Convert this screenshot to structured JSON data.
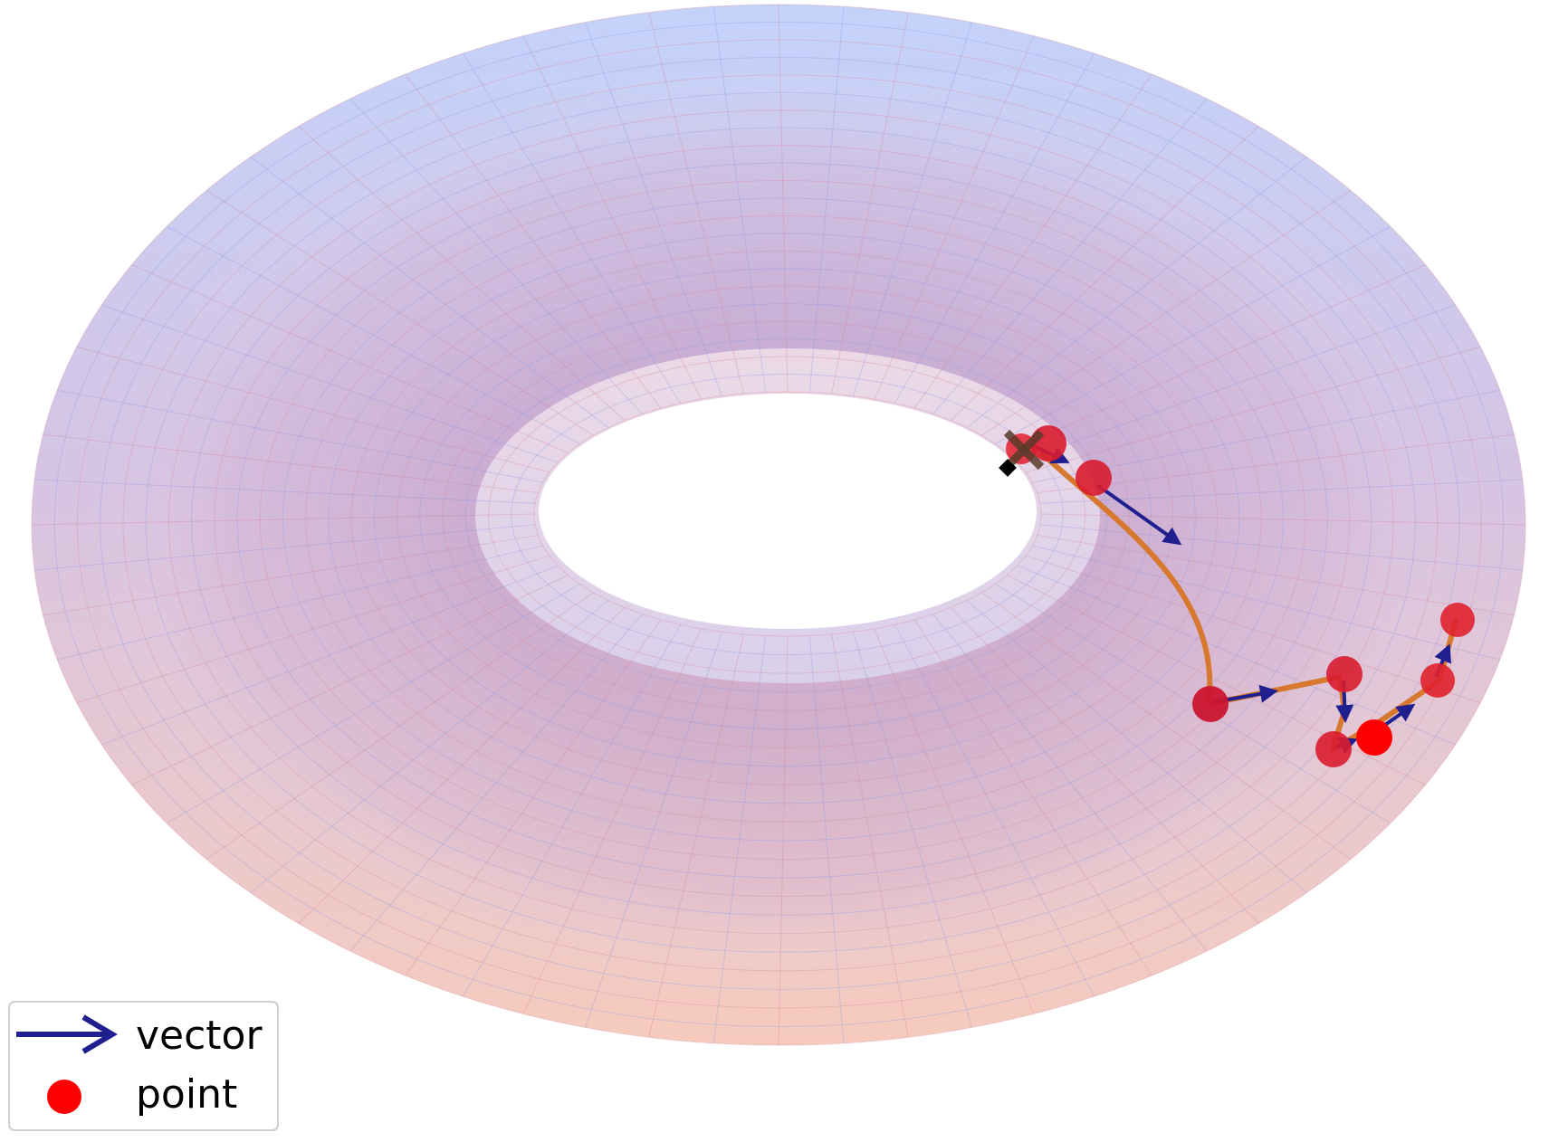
{
  "legend": {
    "vector_label": "vector",
    "point_label": "point"
  },
  "colors": {
    "surface_top": "#c9d4f7",
    "surface_bottom": "#f6c9b8",
    "surface_body": "#c9a3c8",
    "point": "#ff0000",
    "point_marker_edge": "#c8102e",
    "vector": "#1f1f8f",
    "geodesic": "#d7782e",
    "start_marker": "#000000"
  },
  "icons": {
    "start": "x-marker-icon",
    "vector_legend": "arrow-icon",
    "point_legend": "dot-icon"
  }
}
